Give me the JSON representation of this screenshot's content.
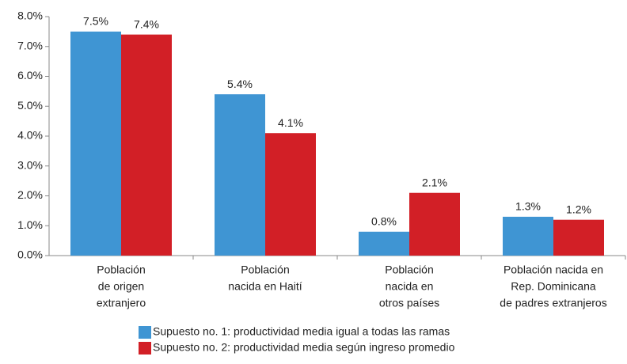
{
  "chart_data": {
    "type": "bar",
    "categories": [
      [
        "Población",
        "de origen",
        "extranjero"
      ],
      [
        "Población",
        "nacida en Haití"
      ],
      [
        "Población",
        "nacida en",
        "otros países"
      ],
      [
        "Población nacida en",
        "Rep. Dominicana",
        "de padres extranjeros"
      ]
    ],
    "series": [
      {
        "name": "Supuesto no. 1: productividad media igual a todas las ramas",
        "color": "#3f95d3",
        "values": [
          7.5,
          5.4,
          0.8,
          1.3
        ],
        "value_labels": [
          "7.5%",
          "5.4%",
          "0.8%",
          "1.3%"
        ]
      },
      {
        "name": "Supuesto no. 2: productividad media según ingreso promedio",
        "color": "#d21f26",
        "values": [
          7.4,
          4.1,
          2.1,
          1.2
        ],
        "value_labels": [
          "7.4%",
          "4.1%",
          "2.1%",
          "1.2%"
        ]
      }
    ],
    "ylim": [
      0,
      8
    ],
    "yticks": [
      {
        "value": 0,
        "label": "0.0%"
      },
      {
        "value": 1,
        "label": "1.0%"
      },
      {
        "value": 2,
        "label": "2.0%"
      },
      {
        "value": 3,
        "label": "3.0%"
      },
      {
        "value": 4,
        "label": "4.0%"
      },
      {
        "value": 5,
        "label": "5.0%"
      },
      {
        "value": 6,
        "label": "6.0%"
      },
      {
        "value": 7,
        "label": "7.0%"
      },
      {
        "value": 8,
        "label": "8.0%"
      }
    ],
    "grid": false,
    "legend": "bottom"
  }
}
